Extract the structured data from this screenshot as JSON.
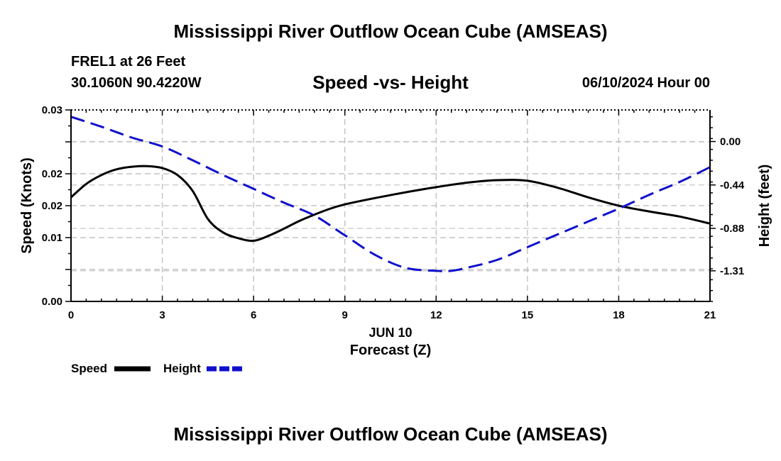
{
  "header": {
    "title": "Mississippi River Outflow Ocean Cube (AMSEAS)",
    "station": "FREL1 at 26 Feet",
    "coords": "30.1060N  90.4220W",
    "subtitle": "Speed -vs- Height",
    "datetime": "06/10/2024 Hour 00"
  },
  "footer": {
    "title": "Mississippi River Outflow Ocean Cube (AMSEAS)"
  },
  "chart_data": {
    "type": "line",
    "xlabel": "Forecast (Z)",
    "date_label": "JUN 10",
    "ylabel": "Speed (Knots)",
    "y2label": "Height (feet)",
    "xlim": [
      0,
      21
    ],
    "ylim": [
      0.0,
      0.03
    ],
    "y2lim": [
      -1.62,
      0.32
    ],
    "x_ticks": [
      0,
      3,
      6,
      9,
      12,
      15,
      18,
      21
    ],
    "x_tick_labels": [
      "0",
      "3",
      "6",
      "9",
      "12",
      "15",
      "18",
      "21"
    ],
    "y_ticks": [
      0.0,
      0.005,
      0.01,
      0.015,
      0.02,
      0.025,
      0.03
    ],
    "y_tick_labels": [
      "0.00",
      "",
      "0.01",
      "",
      "0.02",
      "",
      "0.03"
    ],
    "y_tick_display": [
      "0.00",
      "0.01",
      "0.02",
      "0.02",
      "0.03"
    ],
    "y_tick_display_pos": [
      0.0,
      0.01,
      0.015,
      0.02,
      0.03
    ],
    "y2_ticks": [
      0.0,
      -0.44,
      -0.88,
      -1.31
    ],
    "y2_tick_labels": [
      "0.00",
      "-0.44",
      "-0.88",
      "-1.31"
    ],
    "grid": true,
    "series": [
      {
        "name": "Speed",
        "axis": "left",
        "color": "#000000",
        "style": "solid",
        "x": [
          0,
          0.5,
          1,
          1.5,
          2,
          2.5,
          3,
          3.5,
          4,
          4.5,
          5,
          5.5,
          6,
          6.5,
          7,
          7.5,
          8,
          8.5,
          9,
          10,
          11,
          12,
          13,
          14,
          15,
          16,
          17,
          18,
          19,
          20,
          21
        ],
        "values": [
          0.0163,
          0.0184,
          0.0198,
          0.0207,
          0.0211,
          0.0212,
          0.0209,
          0.0198,
          0.0173,
          0.0129,
          0.0108,
          0.0099,
          0.0095,
          0.0103,
          0.0114,
          0.0126,
          0.0136,
          0.0145,
          0.0152,
          0.0162,
          0.0171,
          0.0179,
          0.0186,
          0.019,
          0.0189,
          0.0178,
          0.0163,
          0.015,
          0.0141,
          0.0133,
          0.0122
        ]
      },
      {
        "name": "Height",
        "axis": "right",
        "color": "#1010cc",
        "style": "dashed",
        "x": [
          0,
          1,
          2,
          3,
          4,
          5,
          6,
          7,
          8,
          9,
          10,
          11,
          12,
          12.5,
          13,
          14,
          15,
          16,
          17,
          18,
          19,
          20,
          21
        ],
        "values": [
          0.25,
          0.15,
          0.04,
          -0.05,
          -0.19,
          -0.34,
          -0.48,
          -0.62,
          -0.75,
          -0.95,
          -1.15,
          -1.28,
          -1.31,
          -1.31,
          -1.28,
          -1.2,
          -1.07,
          -0.94,
          -0.81,
          -0.68,
          -0.54,
          -0.41,
          -0.26
        ]
      }
    ],
    "legend": [
      {
        "label": "Speed",
        "color": "#000000",
        "style": "solid"
      },
      {
        "label": "Height",
        "color": "#1010cc",
        "style": "dashed"
      }
    ]
  }
}
